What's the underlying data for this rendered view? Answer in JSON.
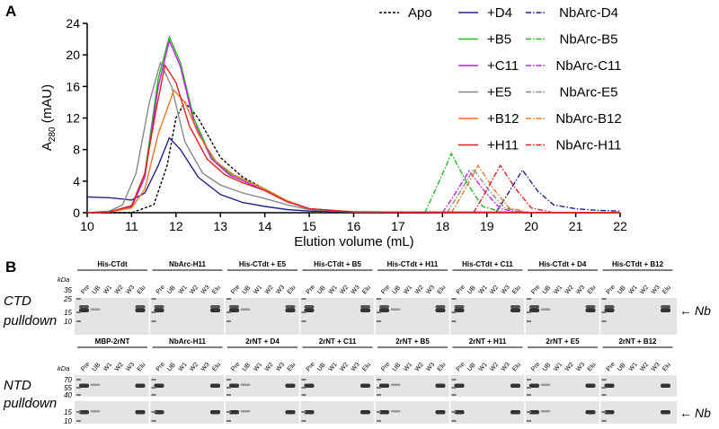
{
  "chart_data": {
    "type": "line",
    "panel_label": "A",
    "x_label": "Elution volume (mL)",
    "y_label": [
      "A",
      "280",
      " (mAU)"
    ],
    "xlim": [
      10,
      22
    ],
    "xticks": [
      10,
      11,
      12,
      13,
      14,
      15,
      16,
      17,
      18,
      19,
      20,
      21,
      22
    ],
    "ylim": [
      0,
      24
    ],
    "yticks": [
      0,
      4,
      8,
      12,
      16,
      20,
      24
    ],
    "legend": "upper right",
    "series": [
      {
        "name": "Apo",
        "color": "#000000",
        "line_style": "dashed",
        "x": [
          10,
          11,
          11.5,
          11.8,
          12.0,
          12.2,
          12.5,
          13,
          13.5,
          14,
          14.5,
          15,
          16,
          22
        ],
        "values": [
          0,
          0,
          1,
          6,
          12,
          14,
          12,
          7,
          4.5,
          3,
          1.5,
          0.5,
          0.1,
          0
        ]
      },
      {
        "name": "+D4",
        "color": "#23238f",
        "line_style": "solid",
        "x": [
          10,
          10.5,
          11,
          11.3,
          11.6,
          11.85,
          12.1,
          12.5,
          13,
          13.5,
          14,
          14.5,
          15,
          16,
          22
        ],
        "values": [
          2,
          1.9,
          1.6,
          2.5,
          6,
          9.5,
          8,
          4.5,
          2.3,
          1.3,
          0.8,
          0.4,
          0.2,
          0.1,
          0
        ]
      },
      {
        "name": "NbArc-D4",
        "color": "#23238f",
        "line_style": "dashdot",
        "x": [
          19.2,
          19.45,
          19.8,
          20.15,
          20.5,
          21,
          21.5,
          22
        ],
        "values": [
          0,
          2.2,
          5.4,
          2.7,
          1,
          0.5,
          0.3,
          0.2
        ]
      },
      {
        "name": "+B5",
        "color": "#22b822",
        "line_style": "solid",
        "x": [
          10,
          10.5,
          11,
          11.3,
          11.6,
          11.85,
          12.1,
          12.4,
          12.8,
          13.2,
          13.6,
          14,
          14.5,
          15,
          16,
          22
        ],
        "values": [
          0,
          0.1,
          0.8,
          5,
          17,
          22.3,
          19,
          12,
          7,
          5,
          4,
          3,
          1.5,
          0.5,
          0.1,
          0
        ]
      },
      {
        "name": "NbArc-B5",
        "color": "#22b822",
        "line_style": "dashdot",
        "x": [
          17.6,
          17.85,
          18.2,
          18.55,
          18.9,
          19.4
        ],
        "values": [
          0,
          3,
          7.5,
          3.8,
          0.8,
          0
        ]
      },
      {
        "name": "+C11",
        "color": "#c020e0",
        "line_style": "solid",
        "x": [
          10,
          10.5,
          11,
          11.3,
          11.6,
          11.85,
          12.1,
          12.4,
          12.8,
          13.2,
          13.6,
          14,
          14.5,
          15,
          16,
          22
        ],
        "values": [
          0,
          0.1,
          0.7,
          4.5,
          16,
          21.8,
          18.5,
          11.5,
          6.8,
          4.8,
          3.8,
          2.8,
          1.4,
          0.5,
          0.1,
          0
        ]
      },
      {
        "name": "NbArc-C11",
        "color": "#c020e0",
        "line_style": "dashdot",
        "x": [
          18.0,
          18.25,
          18.6,
          18.95,
          19.3,
          19.8
        ],
        "values": [
          0,
          2.1,
          5.3,
          2.7,
          0.5,
          0
        ]
      },
      {
        "name": "+E5",
        "color": "#888888",
        "line_style": "solid",
        "x": [
          10,
          10.5,
          10.8,
          11.1,
          11.4,
          11.65,
          11.9,
          12.2,
          12.6,
          13,
          13.5,
          14,
          14.5,
          15,
          16,
          22
        ],
        "values": [
          0,
          0.2,
          1,
          5,
          14,
          19,
          16,
          9,
          5,
          3.5,
          2.5,
          1.8,
          1,
          0.4,
          0.1,
          0
        ]
      },
      {
        "name": "NbArc-E5",
        "color": "#888888",
        "line_style": "dashdot",
        "x": [
          18.1,
          18.35,
          18.7,
          19.05,
          19.4,
          19.9
        ],
        "values": [
          0,
          2.2,
          5.5,
          2.8,
          0.6,
          0
        ]
      },
      {
        "name": "+B12",
        "color": "#f07820",
        "line_style": "solid",
        "x": [
          10,
          10.5,
          11,
          11.3,
          11.6,
          11.95,
          12.2,
          12.5,
          12.9,
          13.3,
          13.7,
          14,
          14.5,
          15,
          16,
          22
        ],
        "values": [
          0,
          0.1,
          0.6,
          3,
          10,
          15.5,
          14,
          10,
          6.5,
          4.8,
          3.8,
          3,
          1.5,
          0.5,
          0.1,
          0
        ]
      },
      {
        "name": "NbArc-B12",
        "color": "#f07820",
        "line_style": "dashdot",
        "x": [
          18.2,
          18.45,
          18.8,
          19.15,
          19.5,
          20.0
        ],
        "values": [
          0,
          2.4,
          6,
          3,
          0.6,
          0
        ]
      },
      {
        "name": "+H11",
        "color": "#e0201f",
        "line_style": "solid",
        "x": [
          10,
          10.5,
          11,
          11.3,
          11.55,
          11.75,
          12.0,
          12.3,
          12.7,
          13.1,
          13.5,
          14,
          14.5,
          15,
          16,
          22
        ],
        "values": [
          0,
          0.1,
          0.9,
          5,
          13,
          18.7,
          16.5,
          11,
          6.8,
          4.8,
          3.8,
          2.8,
          1.4,
          0.5,
          0.1,
          0
        ]
      },
      {
        "name": "NbArc-H11",
        "color": "#e0201f",
        "line_style": "dashdot",
        "x": [
          18.7,
          18.95,
          19.3,
          19.65,
          20.0,
          20.5
        ],
        "values": [
          0,
          2.4,
          6,
          3,
          0.6,
          0
        ]
      }
    ]
  },
  "panel_b": {
    "panel_label": "B",
    "lanes": [
      "Pre",
      "UB",
      "W1",
      "W2",
      "W3",
      "Elu"
    ],
    "marker_unit": "kDa",
    "band_label": "Nb",
    "rows": [
      {
        "label": [
          "CTD",
          "pulldown"
        ],
        "markers": [
          "35",
          "25",
          "15",
          "10"
        ],
        "groups": [
          "His-CTdt",
          "NbArc-H11",
          "His-CTdt + E5",
          "His-CTdt + B5",
          "His-CTdt + H11",
          "His-CTdt + C11",
          "His-CTdt + D4",
          "His-CTdt + B12"
        ]
      },
      {
        "label": [
          "NTD",
          "pulldown"
        ],
        "markers": [
          "70",
          "55",
          "40",
          "15",
          "10"
        ],
        "groups": [
          "MBP-2rNT",
          "NbArc-H11",
          "2rNT + D4",
          "2rNT + C11",
          "2rNT + B5",
          "2rNT + H11",
          "2rNT + E5",
          "2rNT + B12"
        ]
      }
    ]
  }
}
